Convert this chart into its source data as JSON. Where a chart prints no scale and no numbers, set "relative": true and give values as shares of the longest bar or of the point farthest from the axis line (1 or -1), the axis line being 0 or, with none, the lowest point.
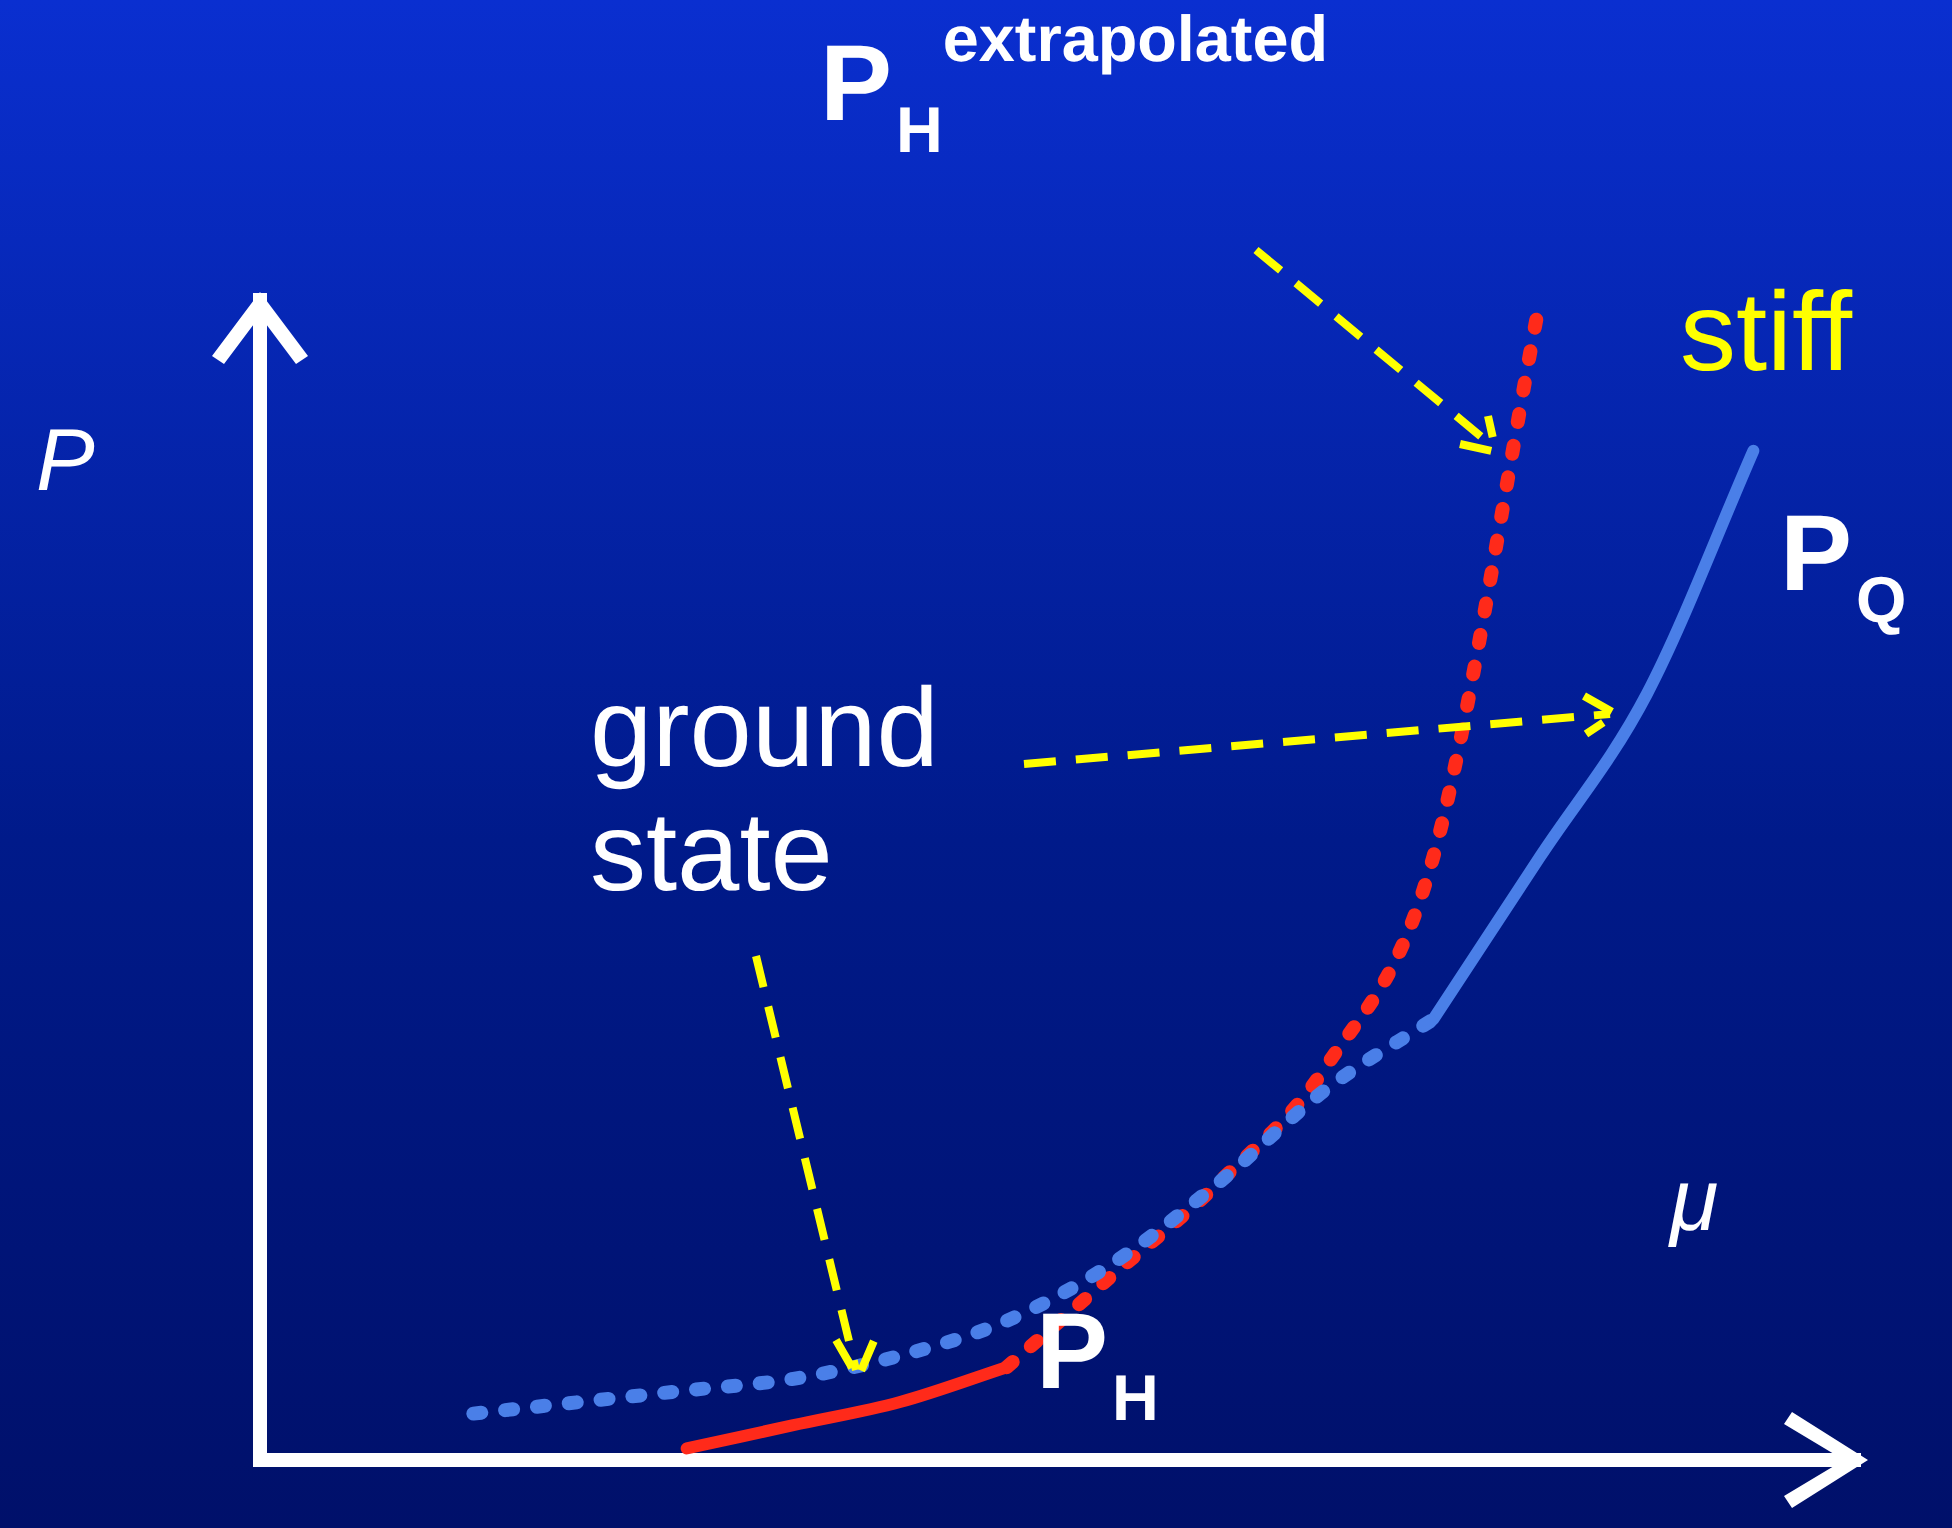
{
  "chart_data": {
    "type": "line",
    "relative": true,
    "xlabel": "μ",
    "ylabel": "P",
    "categories": [
      null,
      null,
      null,
      null,
      null,
      null,
      null,
      null,
      null,
      null,
      null,
      null,
      null,
      null,
      null,
      null
    ],
    "series": [
      {
        "color": "#4a7fe8",
        "line_style": "dotted",
        "values": [
          null,
          null,
          0.04,
          0.05,
          0.06,
          0.07,
          0.09,
          0.12,
          0.17,
          0.24,
          0.32,
          0.38,
          null,
          null,
          null,
          null
        ]
      },
      {
        "name": "P$_{Q}$",
        "color": "#4a7fe8",
        "line_style": "solid",
        "values": [
          null,
          null,
          null,
          null,
          null,
          null,
          null,
          null,
          null,
          null,
          null,
          0.38,
          0.52,
          0.66,
          0.87,
          null
        ]
      },
      {
        "name": "P$_{H}$",
        "color": "#ff2a1a",
        "line_style": "solid",
        "values": [
          null,
          null,
          null,
          null,
          0.01,
          0.03,
          0.05,
          0.08,
          null,
          null,
          null,
          null,
          null,
          null,
          null,
          null
        ]
      },
      {
        "name": "P$_{H}$$^{extrapolated}$",
        "color": "#ff2a1a",
        "line_style": "dotted",
        "values": [
          null,
          null,
          null,
          null,
          null,
          null,
          null,
          0.08,
          0.16,
          0.24,
          0.34,
          0.52,
          1.0,
          null,
          null,
          null
        ]
      }
    ],
    "annotations": [
      "ground state",
      "stiff"
    ],
    "legend": false,
    "grid": false,
    "tick_labels": false,
    "marker": "none"
  }
}
